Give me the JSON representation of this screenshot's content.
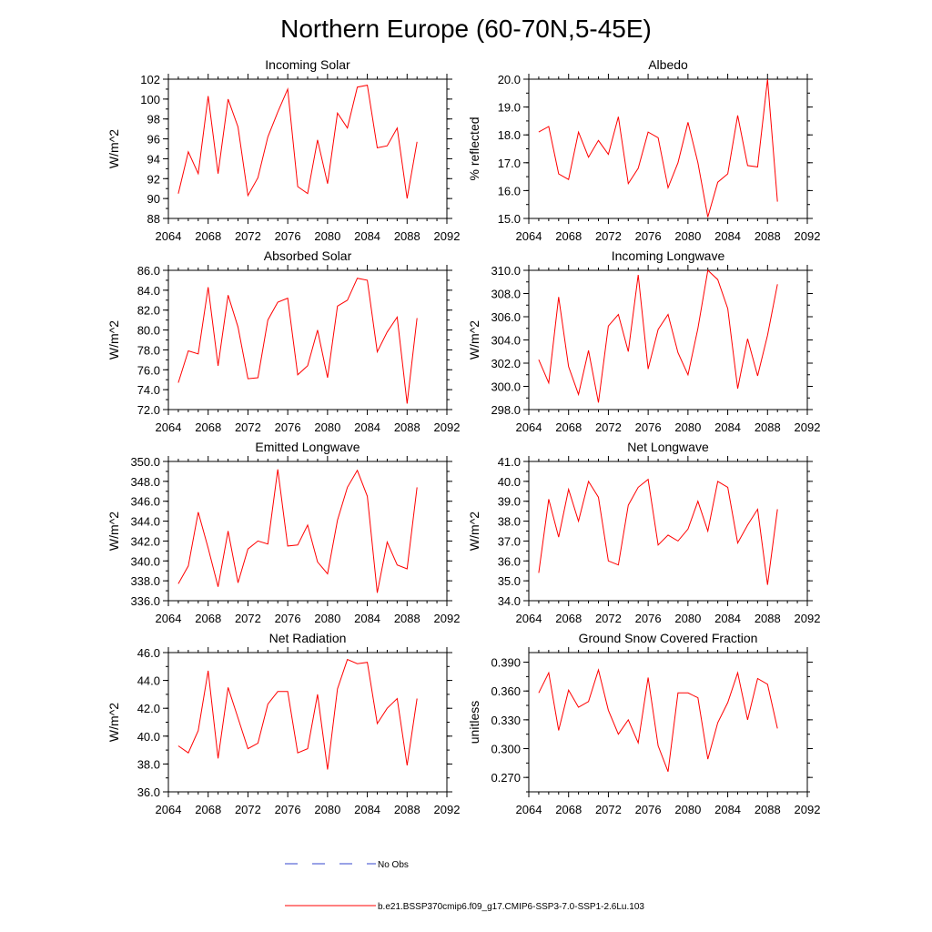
{
  "page_title": "Northern Europe (60-70N,5-45E)",
  "legend": {
    "obs_label": "No Obs",
    "obs_color": "#3344cc",
    "model_label": "b.e21.BSSP370cmip6.f09_g17.CMIP6-SSP3-7.0-SSP1-2.6Lu.103",
    "model_color": "#ff0000"
  },
  "chart_data": [
    {
      "type": "line",
      "title": "Incoming Solar",
      "ylabel": "W/m^2",
      "xlim": [
        2064,
        2092
      ],
      "xticks": [
        2064,
        2068,
        2072,
        2076,
        2080,
        2084,
        2088,
        2092
      ],
      "ylim": [
        88,
        102
      ],
      "yticks": [
        "88",
        "90",
        "92",
        "94",
        "96",
        "98",
        "100",
        "102"
      ],
      "yminor": 1,
      "x": [
        2065,
        2066,
        2067,
        2068,
        2069,
        2070,
        2071,
        2072,
        2073,
        2074,
        2075,
        2076,
        2077,
        2078,
        2079,
        2080,
        2081,
        2082,
        2083,
        2084,
        2085,
        2086,
        2087,
        2088,
        2089
      ],
      "values": [
        90.5,
        94.7,
        92.5,
        100.3,
        92.5,
        100.0,
        97.2,
        90.3,
        92.1,
        96.2,
        98.7,
        101.0,
        91.2,
        90.5,
        95.9,
        91.5,
        98.6,
        97.1,
        101.2,
        101.4,
        95.1,
        95.3,
        97.1,
        90.0,
        95.7
      ]
    },
    {
      "type": "line",
      "title": "Albedo",
      "ylabel": "% reflected",
      "xlim": [
        2064,
        2092
      ],
      "xticks": [
        2064,
        2068,
        2072,
        2076,
        2080,
        2084,
        2088,
        2092
      ],
      "ylim": [
        15.0,
        20.0
      ],
      "yticks": [
        "15.0",
        "16.0",
        "17.0",
        "18.0",
        "19.0",
        "20.0"
      ],
      "yminor": 0.5,
      "x": [
        2065,
        2066,
        2067,
        2068,
        2069,
        2070,
        2071,
        2072,
        2073,
        2074,
        2075,
        2076,
        2077,
        2078,
        2079,
        2080,
        2081,
        2082,
        2083,
        2084,
        2085,
        2086,
        2087,
        2088,
        2089
      ],
      "values": [
        18.1,
        18.3,
        16.6,
        16.4,
        18.1,
        17.2,
        17.8,
        17.3,
        18.65,
        16.25,
        16.8,
        18.1,
        17.9,
        16.1,
        17.0,
        18.45,
        17.0,
        15.05,
        16.3,
        16.6,
        18.7,
        16.9,
        16.85,
        20.0,
        15.6
      ]
    },
    {
      "type": "line",
      "title": "Absorbed Solar",
      "ylabel": "W/m^2",
      "xlim": [
        2064,
        2092
      ],
      "xticks": [
        2064,
        2068,
        2072,
        2076,
        2080,
        2084,
        2088,
        2092
      ],
      "ylim": [
        72.0,
        86.0
      ],
      "yticks": [
        "72.0",
        "74.0",
        "76.0",
        "78.0",
        "80.0",
        "82.0",
        "84.0",
        "86.0"
      ],
      "yminor": 1,
      "x": [
        2065,
        2066,
        2067,
        2068,
        2069,
        2070,
        2071,
        2072,
        2073,
        2074,
        2075,
        2076,
        2077,
        2078,
        2079,
        2080,
        2081,
        2082,
        2083,
        2084,
        2085,
        2086,
        2087,
        2088,
        2089
      ],
      "values": [
        74.7,
        77.9,
        77.6,
        84.3,
        76.4,
        83.5,
        80.3,
        75.1,
        75.2,
        81.0,
        82.8,
        83.2,
        75.5,
        76.4,
        80.0,
        75.2,
        82.4,
        83.0,
        85.2,
        85.0,
        77.8,
        79.8,
        81.3,
        72.6,
        81.2
      ]
    },
    {
      "type": "line",
      "title": "Incoming Longwave",
      "ylabel": "W/m^2",
      "xlim": [
        2064,
        2092
      ],
      "xticks": [
        2064,
        2068,
        2072,
        2076,
        2080,
        2084,
        2088,
        2092
      ],
      "ylim": [
        298.0,
        310.0
      ],
      "yticks": [
        "298.0",
        "300.0",
        "302.0",
        "304.0",
        "306.0",
        "308.0",
        "310.0"
      ],
      "yminor": 1,
      "x": [
        2065,
        2066,
        2067,
        2068,
        2069,
        2070,
        2071,
        2072,
        2073,
        2074,
        2075,
        2076,
        2077,
        2078,
        2079,
        2080,
        2081,
        2082,
        2083,
        2084,
        2085,
        2086,
        2087,
        2088,
        2089
      ],
      "values": [
        302.3,
        300.3,
        307.7,
        301.7,
        299.3,
        303.1,
        298.6,
        305.2,
        306.2,
        303.0,
        309.6,
        301.5,
        304.9,
        306.2,
        302.9,
        301.0,
        305.0,
        310.0,
        309.2,
        306.7,
        299.8,
        304.1,
        300.9,
        304.4,
        308.8
      ]
    },
    {
      "type": "line",
      "title": "Emitted Longwave",
      "ylabel": "W/m^2",
      "xlim": [
        2064,
        2092
      ],
      "xticks": [
        2064,
        2068,
        2072,
        2076,
        2080,
        2084,
        2088,
        2092
      ],
      "ylim": [
        336.0,
        350.0
      ],
      "yticks": [
        "336.0",
        "338.0",
        "340.0",
        "342.0",
        "344.0",
        "346.0",
        "348.0",
        "350.0"
      ],
      "yminor": 1,
      "x": [
        2065,
        2066,
        2067,
        2068,
        2069,
        2070,
        2071,
        2072,
        2073,
        2074,
        2075,
        2076,
        2077,
        2078,
        2079,
        2080,
        2081,
        2082,
        2083,
        2084,
        2085,
        2086,
        2087,
        2088,
        2089
      ],
      "values": [
        337.7,
        339.5,
        344.9,
        341.3,
        337.4,
        343.0,
        337.8,
        341.2,
        342.0,
        341.7,
        349.2,
        341.5,
        341.6,
        343.6,
        339.9,
        338.7,
        344.1,
        347.4,
        349.1,
        346.5,
        336.8,
        341.9,
        339.6,
        339.2,
        347.4
      ]
    },
    {
      "type": "line",
      "title": "Net Longwave",
      "ylabel": "W/m^2",
      "xlim": [
        2064,
        2092
      ],
      "xticks": [
        2064,
        2068,
        2072,
        2076,
        2080,
        2084,
        2088,
        2092
      ],
      "ylim": [
        34.0,
        41.0
      ],
      "yticks": [
        "34.0",
        "35.0",
        "36.0",
        "37.0",
        "38.0",
        "39.0",
        "40.0",
        "41.0"
      ],
      "yminor": 0.5,
      "x": [
        2065,
        2066,
        2067,
        2068,
        2069,
        2070,
        2071,
        2072,
        2073,
        2074,
        2075,
        2076,
        2077,
        2078,
        2079,
        2080,
        2081,
        2082,
        2083,
        2084,
        2085,
        2086,
        2087,
        2088,
        2089
      ],
      "values": [
        35.4,
        39.1,
        37.2,
        39.6,
        38.0,
        40.0,
        39.2,
        36.0,
        35.8,
        38.8,
        39.7,
        40.1,
        36.8,
        37.3,
        37.0,
        37.6,
        39.0,
        37.5,
        40.0,
        39.7,
        36.9,
        37.8,
        38.6,
        34.8,
        38.6
      ]
    },
    {
      "type": "line",
      "title": "Net Radiation",
      "ylabel": "W/m^2",
      "xlim": [
        2064,
        2092
      ],
      "xticks": [
        2064,
        2068,
        2072,
        2076,
        2080,
        2084,
        2088,
        2092
      ],
      "ylim": [
        36.0,
        46.0
      ],
      "yticks": [
        "36.0",
        "38.0",
        "40.0",
        "42.0",
        "44.0",
        "46.0"
      ],
      "yminor": 1,
      "x": [
        2065,
        2066,
        2067,
        2068,
        2069,
        2070,
        2071,
        2072,
        2073,
        2074,
        2075,
        2076,
        2077,
        2078,
        2079,
        2080,
        2081,
        2082,
        2083,
        2084,
        2085,
        2086,
        2087,
        2088,
        2089
      ],
      "values": [
        39.3,
        38.8,
        40.4,
        44.7,
        38.4,
        43.5,
        41.3,
        39.1,
        39.5,
        42.3,
        43.2,
        43.2,
        38.8,
        39.1,
        43.0,
        37.6,
        43.4,
        45.5,
        45.2,
        45.3,
        40.9,
        42.0,
        42.7,
        37.9,
        42.7
      ]
    },
    {
      "type": "line",
      "title": "Ground Snow Covered Fraction",
      "ylabel": "unitless",
      "xlim": [
        2064,
        2092
      ],
      "xticks": [
        2064,
        2068,
        2072,
        2076,
        2080,
        2084,
        2088,
        2092
      ],
      "ylim": [
        0.255,
        0.4
      ],
      "yticks": [
        "0.270",
        "0.300",
        "0.330",
        "0.360",
        "0.390"
      ],
      "ytick_values": [
        0.27,
        0.3,
        0.33,
        0.36,
        0.39
      ],
      "yminor": 0.015,
      "x": [
        2065,
        2066,
        2067,
        2068,
        2069,
        2070,
        2071,
        2072,
        2073,
        2074,
        2075,
        2076,
        2077,
        2078,
        2079,
        2080,
        2081,
        2082,
        2083,
        2084,
        2085,
        2086,
        2087,
        2088,
        2089
      ],
      "values": [
        0.358,
        0.379,
        0.319,
        0.361,
        0.343,
        0.349,
        0.382,
        0.34,
        0.315,
        0.33,
        0.306,
        0.374,
        0.303,
        0.276,
        0.358,
        0.358,
        0.353,
        0.289,
        0.327,
        0.348,
        0.379,
        0.33,
        0.373,
        0.367,
        0.321
      ]
    }
  ]
}
